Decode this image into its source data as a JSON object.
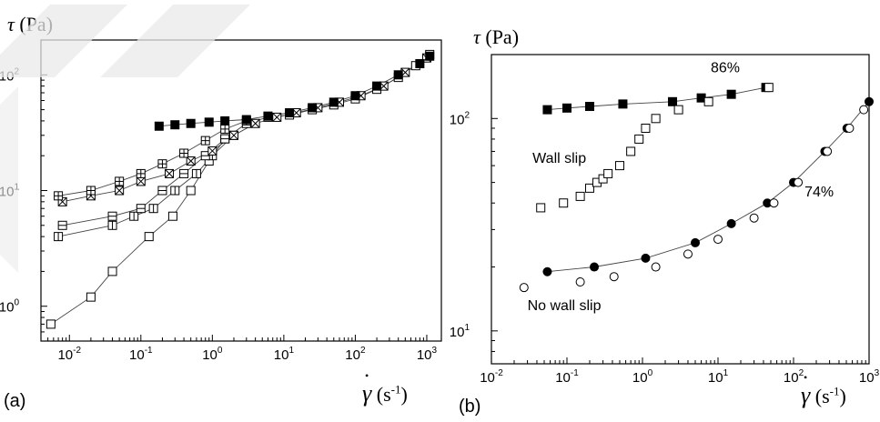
{
  "chart_data": [
    {
      "type": "scatter",
      "panel_label": "(a)",
      "title": "",
      "xlabel_prefix": "γ̇",
      "xlabel_unit": "(s",
      "xlabel_exp": "-1",
      "xlabel_close": ")",
      "ylabel_symbol": "τ",
      "ylabel_unit": " (Pa)",
      "xscale": "log",
      "yscale": "log",
      "xlim": [
        0.004,
        1600
      ],
      "ylim": [
        0.5,
        200
      ],
      "xticks": [
        {
          "value": 0.01,
          "base": "10",
          "exp": "-2"
        },
        {
          "value": 0.1,
          "base": "10",
          "exp": "-1"
        },
        {
          "value": 1,
          "base": "10",
          "exp": "0"
        },
        {
          "value": 10,
          "base": "10",
          "exp": "1"
        },
        {
          "value": 100,
          "base": "10",
          "exp": "2"
        },
        {
          "value": 1000,
          "base": "10",
          "exp": "3"
        }
      ],
      "yticks": [
        {
          "value": 1,
          "base": "10",
          "exp": "0"
        },
        {
          "value": 10,
          "base": "10",
          "exp": "1"
        },
        {
          "value": 100,
          "base": "10",
          "exp": "2"
        }
      ],
      "series": [
        {
          "marker": "open-square",
          "x": [
            0.0055,
            0.02,
            0.04,
            0.13,
            0.28,
            0.5,
            0.9,
            1.5,
            3,
            6,
            12,
            25,
            50,
            100,
            200,
            400,
            700,
            1100
          ],
          "y": [
            0.7,
            1.2,
            2,
            4,
            6,
            10,
            18,
            28,
            38,
            43,
            45,
            50,
            55,
            62,
            75,
            95,
            120,
            150
          ]
        },
        {
          "marker": "minus-square",
          "x": [
            0.007,
            0.04,
            0.08,
            0.15,
            0.3,
            0.6,
            1,
            2
          ],
          "y": [
            4,
            5,
            6,
            7,
            10,
            14,
            20,
            30
          ]
        },
        {
          "marker": "h-minus-square",
          "x": [
            0.008,
            0.04,
            0.1,
            0.2,
            0.4,
            0.8,
            1.5
          ],
          "y": [
            5,
            6,
            7,
            10,
            14,
            20,
            28
          ]
        },
        {
          "marker": "x-square",
          "x": [
            0.008,
            0.02,
            0.05,
            0.1,
            0.25,
            0.5,
            1,
            2,
            4,
            8,
            15,
            30,
            60,
            120,
            250,
            500,
            1000
          ],
          "y": [
            8,
            9,
            10,
            12,
            14,
            18,
            22,
            30,
            38,
            43,
            47,
            52,
            58,
            66,
            80,
            105,
            140
          ]
        },
        {
          "marker": "plus-square",
          "x": [
            0.007,
            0.02,
            0.05,
            0.1,
            0.2,
            0.4,
            0.8,
            1.5,
            3
          ],
          "y": [
            9,
            10,
            12,
            14,
            17,
            21,
            27,
            34,
            40
          ]
        },
        {
          "marker": "filled-square",
          "x": [
            0.18,
            0.3,
            0.5,
            0.9,
            1.5,
            3,
            6,
            12,
            25,
            50,
            100,
            200,
            400,
            800,
            1100
          ],
          "y": [
            36,
            37,
            38,
            39,
            40,
            41,
            44,
            47,
            52,
            58,
            66,
            80,
            100,
            125,
            145
          ]
        }
      ]
    },
    {
      "type": "scatter",
      "panel_label": "(b)",
      "title": "",
      "xlabel_prefix": "γ̇",
      "xlabel_unit": "(s",
      "xlabel_exp": "-1",
      "xlabel_close": ")",
      "ylabel_symbol": "τ",
      "ylabel_unit": " (Pa)",
      "xscale": "log",
      "yscale": "log",
      "xlim": [
        0.01,
        1000
      ],
      "ylim": [
        7,
        200
      ],
      "xticks": [
        {
          "value": 0.01,
          "base": "10",
          "exp": "-2"
        },
        {
          "value": 0.1,
          "base": "10",
          "exp": "-1"
        },
        {
          "value": 1,
          "base": "10",
          "exp": "0"
        },
        {
          "value": 10,
          "base": "10",
          "exp": "1"
        },
        {
          "value": 100,
          "base": "10",
          "exp": "2"
        },
        {
          "value": 1000,
          "base": "10",
          "exp": "3"
        }
      ],
      "yticks": [
        {
          "value": 10,
          "base": "10",
          "exp": "1"
        },
        {
          "value": 100,
          "base": "10",
          "exp": "2"
        }
      ],
      "annotations": [
        {
          "text": "86%",
          "x": 8,
          "y": 165
        },
        {
          "text": "Wall slip",
          "x": 0.035,
          "y": 62
        },
        {
          "text": "74%",
          "x": 140,
          "y": 43
        },
        {
          "text": "No wall slip",
          "x": 0.03,
          "y": 12.5
        }
      ],
      "series": [
        {
          "marker": "filled-square",
          "x": [
            0.055,
            0.1,
            0.2,
            0.55,
            2.5,
            6,
            15,
            43
          ],
          "y": [
            110,
            112,
            114,
            117,
            120,
            125,
            130,
            140
          ]
        },
        {
          "marker": "open-square",
          "x": [
            0.045,
            0.09,
            0.15,
            0.2,
            0.25,
            0.3,
            0.35,
            0.5,
            0.7,
            0.9,
            1.1,
            1.5,
            3,
            7.5,
            47
          ],
          "y": [
            38,
            40,
            43,
            47,
            50,
            52,
            55,
            60,
            70,
            80,
            90,
            100,
            110,
            120,
            140
          ]
        },
        {
          "marker": "filled-circle",
          "x": [
            0.055,
            0.23,
            1.1,
            5,
            15,
            45,
            100,
            260,
            510,
            1000
          ],
          "y": [
            19,
            20,
            22,
            26,
            32,
            40,
            50,
            70,
            90,
            120
          ]
        },
        {
          "marker": "open-circle",
          "x": [
            0.027,
            0.15,
            0.42,
            1.5,
            4,
            10,
            30,
            55,
            115,
            280,
            550,
            850
          ],
          "y": [
            16,
            17,
            18,
            20,
            23,
            27,
            34,
            40,
            50,
            70,
            90,
            110
          ]
        }
      ],
      "fit_lines": [
        {
          "x": [
            0.055,
            0.23,
            1.1,
            5,
            15,
            45,
            100,
            260,
            510,
            1000
          ],
          "y": [
            19,
            20,
            22,
            26,
            32,
            40,
            50,
            70,
            90,
            120
          ]
        },
        {
          "x": [
            0.055,
            0.1,
            0.2,
            0.55,
            2.5,
            6,
            15,
            43
          ],
          "y": [
            110,
            112,
            114,
            117,
            120,
            125,
            130,
            140
          ]
        }
      ]
    }
  ]
}
